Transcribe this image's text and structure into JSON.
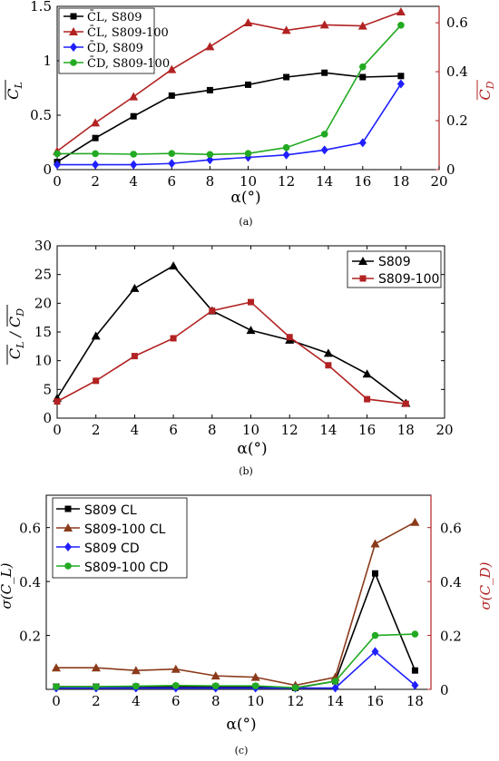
{
  "colors": {
    "black": "#000000",
    "red": "#b22222",
    "blue": "#1f1fff",
    "green": "#22aa22",
    "brown": "#8b3a1a",
    "grid": "none"
  },
  "chart_data": [
    {
      "type": "line",
      "caption": "(a)",
      "xlabel": "α(°)",
      "ylabel_left": "C_L (mean)",
      "ylabel_right": "C_D (mean)",
      "xlim": [
        0,
        20
      ],
      "ylim_left": [
        0,
        1.5
      ],
      "ylim_right": [
        0,
        0.667
      ],
      "x_ticks": [
        "0",
        "2",
        "4",
        "6",
        "8",
        "10",
        "12",
        "14",
        "16",
        "18",
        "20"
      ],
      "y_left_ticks": [
        "0",
        "0.5",
        "1",
        "1.5"
      ],
      "y_right_ticks": [
        "0",
        "0.2",
        "0.4",
        "0.6"
      ],
      "legend": {
        "position": "top-left"
      },
      "series": [
        {
          "name": "C̄L, S809",
          "axis": "left",
          "marker": "square",
          "color": "black",
          "x": [
            0,
            2,
            4,
            6,
            8,
            10,
            12,
            14,
            16,
            18
          ],
          "y": [
            0.07,
            0.29,
            0.49,
            0.68,
            0.73,
            0.78,
            0.85,
            0.89,
            0.85,
            0.86
          ]
        },
        {
          "name": "C̄L, S809-100",
          "axis": "left",
          "marker": "triangle",
          "color": "red",
          "x": [
            0,
            2,
            4,
            6,
            8,
            10,
            12,
            14,
            16,
            18
          ],
          "y": [
            0.17,
            0.43,
            0.67,
            0.92,
            1.13,
            1.35,
            1.28,
            1.33,
            1.32,
            1.45
          ]
        },
        {
          "name": "C̄D, S809",
          "axis": "right",
          "marker": "diamond",
          "color": "blue",
          "x": [
            0,
            2,
            4,
            6,
            8,
            10,
            12,
            14,
            16,
            18
          ],
          "y": [
            0.02,
            0.02,
            0.02,
            0.025,
            0.04,
            0.05,
            0.06,
            0.08,
            0.11,
            0.35
          ]
        },
        {
          "name": "C̄D, S809-100",
          "axis": "right",
          "marker": "circle",
          "color": "green",
          "x": [
            0,
            2,
            4,
            6,
            8,
            10,
            12,
            14,
            16,
            18
          ],
          "y": [
            0.065,
            0.065,
            0.063,
            0.066,
            0.062,
            0.066,
            0.09,
            0.145,
            0.42,
            0.59
          ]
        }
      ]
    },
    {
      "type": "line",
      "caption": "(b)",
      "xlabel": "α(°)",
      "ylabel": "C_L / C_D (mean)",
      "xlim": [
        0,
        20
      ],
      "ylim": [
        0,
        30
      ],
      "x_ticks": [
        "0",
        "2",
        "4",
        "6",
        "8",
        "10",
        "12",
        "14",
        "16",
        "18",
        "20"
      ],
      "y_ticks": [
        "0",
        "5",
        "10",
        "15",
        "20",
        "25",
        "30"
      ],
      "legend": {
        "position": "top-right"
      },
      "series": [
        {
          "name": "S809",
          "marker": "triangle",
          "color": "black",
          "x": [
            0,
            2,
            4,
            6,
            8,
            10,
            12,
            14,
            16,
            18
          ],
          "y": [
            3.5,
            14.3,
            22.6,
            26.5,
            18.7,
            15.3,
            13.6,
            11.3,
            7.7,
            2.6
          ]
        },
        {
          "name": "S809-100",
          "marker": "square",
          "color": "red",
          "x": [
            0,
            2,
            4,
            6,
            8,
            10,
            12,
            14,
            16,
            18
          ],
          "y": [
            2.9,
            6.5,
            10.8,
            13.9,
            18.7,
            20.2,
            14.1,
            9.2,
            3.3,
            2.5
          ]
        }
      ]
    },
    {
      "type": "line",
      "caption": "(c)",
      "xlabel": "α(°)",
      "ylabel_left": "σ(C_L)",
      "ylabel_right": "σ(C_D)",
      "xlim": [
        -0.5,
        18.8
      ],
      "ylim_left": [
        0,
        0.72
      ],
      "ylim_right": [
        0,
        0.72
      ],
      "x_ticks": [
        "0",
        "2",
        "4",
        "6",
        "8",
        "10",
        "12",
        "14",
        "16",
        "18"
      ],
      "y_left_ticks": [
        "0.2",
        "0.4",
        "0.6"
      ],
      "y_right_ticks": [
        "0",
        "0.2",
        "0.4",
        "0.6"
      ],
      "legend": {
        "position": "top-left"
      },
      "series": [
        {
          "name": "S809 CL",
          "axis": "left",
          "marker": "square",
          "color": "black",
          "x": [
            0,
            2,
            4,
            6,
            8,
            10,
            12,
            14,
            16,
            18
          ],
          "y": [
            0.01,
            0.01,
            0.01,
            0.01,
            0.01,
            0.01,
            0.005,
            0.03,
            0.43,
            0.07
          ]
        },
        {
          "name": "S809-100 CL",
          "axis": "left",
          "marker": "triangle",
          "color": "brown",
          "x": [
            0,
            2,
            4,
            6,
            8,
            10,
            12,
            14,
            16,
            18
          ],
          "y": [
            0.08,
            0.08,
            0.07,
            0.075,
            0.05,
            0.045,
            0.015,
            0.045,
            0.54,
            0.62
          ]
        },
        {
          "name": "S809 CD",
          "axis": "right",
          "marker": "diamond",
          "color": "blue",
          "x": [
            0,
            2,
            4,
            6,
            8,
            10,
            12,
            14,
            16,
            18
          ],
          "y": [
            0.005,
            0.005,
            0.005,
            0.005,
            0.005,
            0.005,
            0.005,
            0.005,
            0.14,
            0.015
          ]
        },
        {
          "name": "S809-100 CD",
          "axis": "right",
          "marker": "circle",
          "color": "green",
          "x": [
            0,
            2,
            4,
            6,
            8,
            10,
            12,
            14,
            16,
            18
          ],
          "y": [
            0.01,
            0.01,
            0.012,
            0.014,
            0.013,
            0.013,
            0.006,
            0.03,
            0.2,
            0.205
          ]
        }
      ]
    }
  ]
}
